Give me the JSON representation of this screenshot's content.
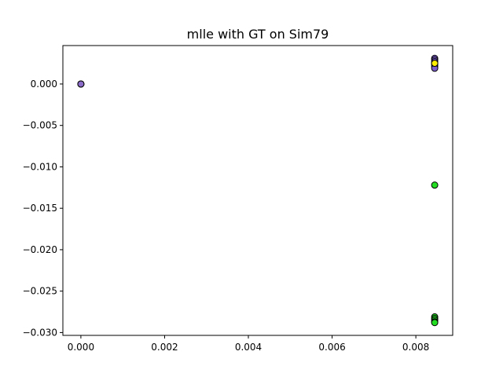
{
  "chart_data": {
    "type": "scatter",
    "title": "mlle with GT on Sim79",
    "xlabel": "",
    "ylabel": "",
    "xlim": [
      -0.00043,
      0.00888
    ],
    "ylim": [
      -0.03034,
      0.00464
    ],
    "x_ticks": [
      0.0,
      0.002,
      0.004,
      0.006,
      0.008
    ],
    "x_tick_labels": [
      "0.000",
      "0.002",
      "0.004",
      "0.006",
      "0.008"
    ],
    "y_ticks": [
      0.0,
      -0.005,
      -0.01,
      -0.015,
      -0.02,
      -0.025,
      -0.03
    ],
    "y_tick_labels": [
      "0.000",
      "−0.005",
      "−0.010",
      "−0.015",
      "−0.020",
      "−0.025",
      "−0.030"
    ],
    "grid": false,
    "point_edge_color": "#000000",
    "series": [
      {
        "color": "#8a6cc8",
        "points": [
          [
            0.0,
            0.0
          ],
          [
            0.0,
            0.0
          ],
          [
            0.0,
            0.0
          ]
        ]
      },
      {
        "color": "#22dd22",
        "points": [
          [
            0.00845,
            -0.0122
          ],
          [
            0.00845,
            -0.0281
          ],
          [
            0.00845,
            -0.0283
          ],
          [
            0.00845,
            -0.0285
          ],
          [
            0.00845,
            -0.0287
          ],
          [
            0.00845,
            -0.0288
          ]
        ]
      },
      {
        "color": "#7e5fd0",
        "points": [
          [
            0.00845,
            0.0031
          ],
          [
            0.00845,
            0.0029
          ],
          [
            0.00845,
            0.0027
          ],
          [
            0.00845,
            0.0025
          ],
          [
            0.00845,
            0.0023
          ],
          [
            0.00845,
            0.0021
          ],
          [
            0.00845,
            0.0019
          ]
        ]
      },
      {
        "color": "#ffee00",
        "points": [
          [
            0.00845,
            0.0025
          ]
        ]
      }
    ]
  }
}
